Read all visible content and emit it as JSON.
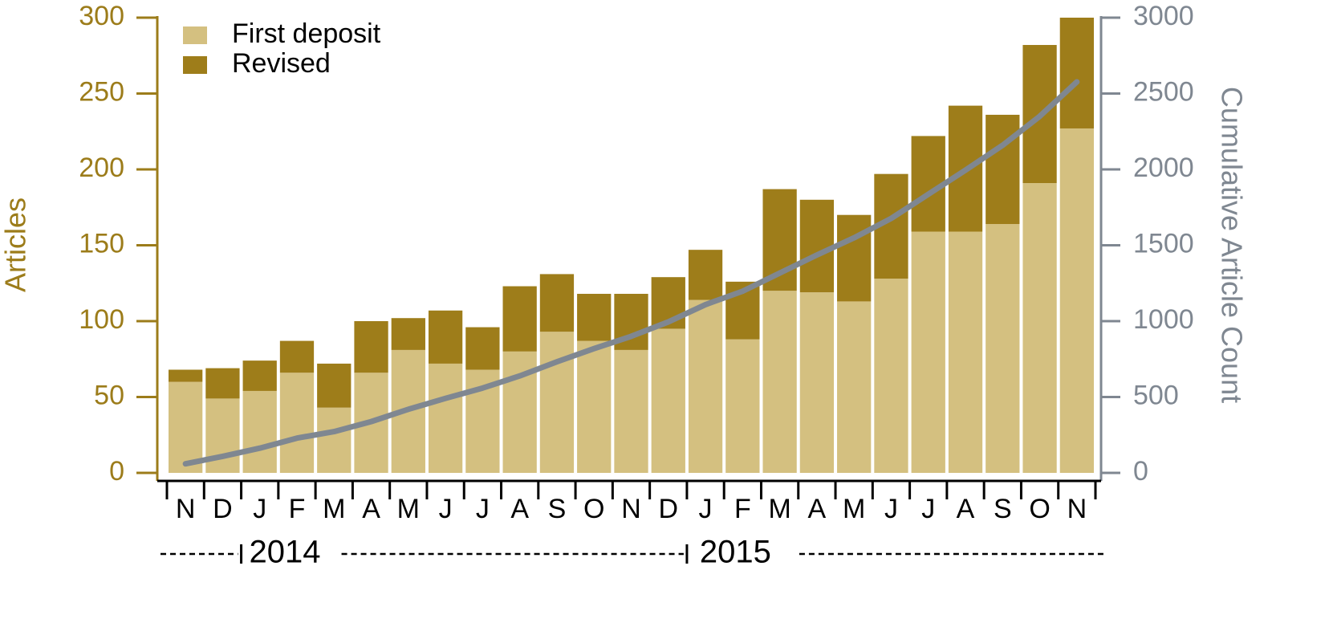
{
  "chart_data": {
    "type": "stacked-bar-line",
    "categories": [
      "N",
      "D",
      "J",
      "F",
      "M",
      "A",
      "M",
      "J",
      "J",
      "A",
      "S",
      "O",
      "N",
      "D",
      "J",
      "F",
      "M",
      "A",
      "M",
      "J",
      "J",
      "A",
      "S",
      "O",
      "N"
    ],
    "year_labels": [
      "2014",
      "2015"
    ],
    "y_label": "Articles",
    "y2_label": "Cumulative Article Count",
    "series": [
      {
        "name": "First deposit",
        "color": "#d4c080",
        "values": [
          60,
          49,
          54,
          66,
          43,
          66,
          81,
          72,
          68,
          80,
          93,
          87,
          81,
          95,
          114,
          88,
          120,
          119,
          113,
          128,
          159,
          159,
          164,
          191,
          227
        ]
      },
      {
        "name": "Revised",
        "color": "#9e7d1a",
        "values": [
          8,
          20,
          20,
          21,
          29,
          34,
          21,
          35,
          28,
          43,
          38,
          31,
          37,
          34,
          33,
          38,
          67,
          61,
          57,
          69,
          63,
          83,
          72,
          91,
          73
        ]
      },
      {
        "color": "#7f8791",
        "axis": "y2",
        "values": [
          60,
          109,
          163,
          229,
          272,
          338,
          419,
          491,
          559,
          639,
          732,
          819,
          900,
          995,
          1109,
          1197,
          1317,
          1436,
          1549,
          1677,
          1836,
          1995,
          2159,
          2350,
          2577
        ]
      }
    ],
    "ylim": [
      0,
      300
    ],
    "yticks": [
      0,
      50,
      100,
      150,
      200,
      250,
      300
    ],
    "y2lim": [
      0,
      3000
    ],
    "y2ticks": [
      0,
      500,
      1000,
      1500,
      2000,
      2500,
      3000
    ],
    "y_axis_color": "#9c7c1a",
    "y2_axis_color": "#7f8791",
    "legend": "upper-left"
  }
}
